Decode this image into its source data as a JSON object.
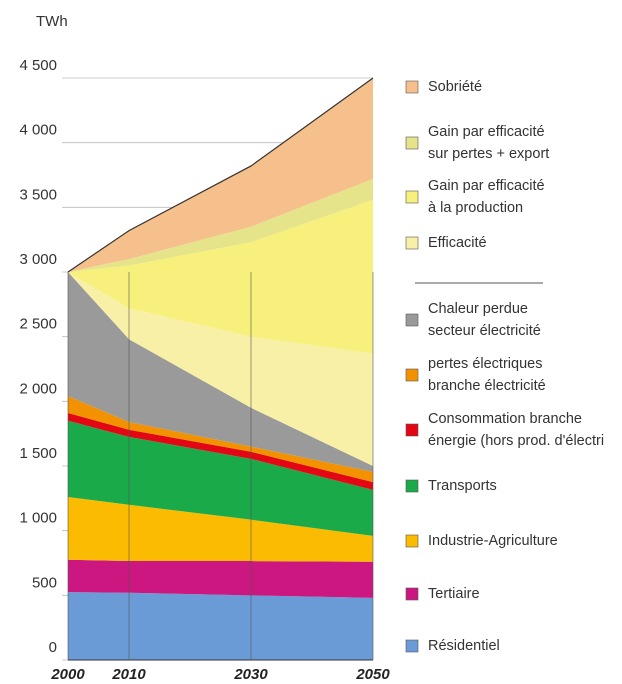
{
  "chart_data": {
    "type": "stacked_area",
    "ylabel": "TWh",
    "x": [
      2000,
      2010,
      2030,
      2050
    ],
    "xlim": [
      2000,
      2050
    ],
    "ylim": [
      0,
      4500
    ],
    "yticks": [
      0,
      500,
      {
        "value": 1000,
        "label": "1 000"
      },
      {
        "value": 1500,
        "label": "1 500"
      },
      {
        "value": 2000,
        "label": "2 000"
      },
      {
        "value": 2500,
        "label": "2 500"
      },
      {
        "value": 3000,
        "label": "3 000"
      },
      {
        "value": 3500,
        "label": "3 500"
      },
      {
        "value": 4000,
        "label": "4 000"
      },
      {
        "value": 4500,
        "label": "4 500"
      }
    ],
    "grid": true,
    "legend": "right",
    "series": [
      {
        "name": "Résidentiel",
        "color": "#6b9bd6",
        "values": [
          525,
          520,
          500,
          480
        ]
      },
      {
        "name": "Tertiaire",
        "color": "#cc1780",
        "values": [
          250,
          245,
          265,
          280
        ]
      },
      {
        "name": "Industrie-Agriculture",
        "color": "#fbbb00",
        "values": [
          485,
          435,
          320,
          200
        ]
      },
      {
        "name": "Transports",
        "color": "#1aaa4a",
        "values": [
          590,
          525,
          470,
          355
        ]
      },
      {
        "name": "Consommation branche\nénergie (hors prod. d'électri",
        "color": "#e30613",
        "values": [
          60,
          55,
          55,
          60
        ]
      },
      {
        "name": "pertes électriques\nbranche électricité",
        "color": "#f39200",
        "values": [
          130,
          60,
          40,
          80
        ]
      },
      {
        "name": "Chaleur perdue\nsecteur électricité",
        "color": "#9a9a9a",
        "values": [
          960,
          640,
          300,
          45
        ]
      },
      {
        "name": "Efficacité",
        "color": "#f8f0a6",
        "values": [
          0,
          240,
          550,
          870
        ]
      },
      {
        "name": "Gain par efficacité\nà la production",
        "color": "#f7f07c",
        "values": [
          0,
          330,
          730,
          1190
        ]
      },
      {
        "name": "Gain par efficacité\nsur pertes + export",
        "color": "#e6e48a",
        "values": [
          0,
          50,
          120,
          160
        ]
      },
      {
        "name": "Sobriété",
        "color": "#f5c08c",
        "values": [
          0,
          220,
          470,
          780
        ]
      }
    ]
  }
}
